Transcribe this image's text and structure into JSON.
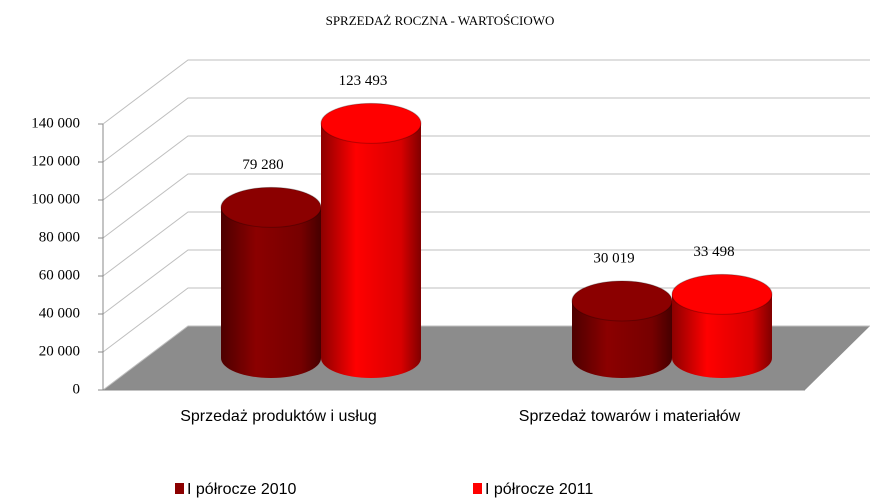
{
  "chart_data": {
    "type": "bar3d",
    "title": "SPRZEDAŻ ROCZNA - WARTOŚCIOWO",
    "categories": [
      "Sprzedaż produktów i usług",
      "Sprzedaż towarów i materiałów"
    ],
    "series": [
      {
        "name": "I półrocze 2010",
        "color": "#8b0000",
        "values": [
          79280,
          30019
        ],
        "value_labels": [
          "79 280",
          "30 019"
        ]
      },
      {
        "name": "I półrocze 2011",
        "color": "#ff0000",
        "values": [
          123493,
          33498
        ],
        "value_labels": [
          "123 493",
          "33 498"
        ]
      }
    ],
    "ylim": [
      0,
      140000
    ],
    "yticks": [
      {
        "value": 0,
        "label": "0"
      },
      {
        "value": 20000,
        "label": "20 000"
      },
      {
        "value": 40000,
        "label": "40 000"
      },
      {
        "value": 60000,
        "label": "60 000"
      },
      {
        "value": 80000,
        "label": "80 000"
      },
      {
        "value": 100000,
        "label": "100 000"
      },
      {
        "value": 120000,
        "label": "120 000"
      },
      {
        "value": 140000,
        "label": "140 000"
      }
    ],
    "grid": true,
    "legend": "bottom"
  }
}
